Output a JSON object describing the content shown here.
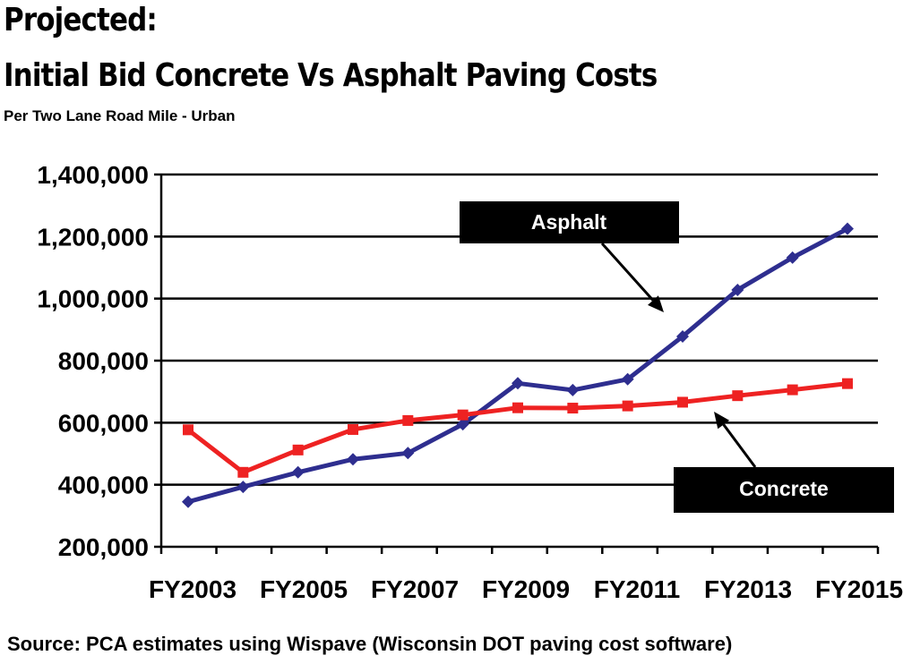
{
  "header": {
    "title_line1": "Projected:",
    "title_line2": "Initial Bid Concrete Vs Asphalt Paving Costs",
    "subtitle": "Per Two Lane Road Mile - Urban"
  },
  "footer": {
    "source": "Source: PCA estimates using Wispave (Wisconsin DOT paving cost software)"
  },
  "colors": {
    "asphalt": "#2e2e8f",
    "concrete": "#ee2222",
    "callout_bg": "#000000",
    "callout_text": "#ffffff",
    "grid": "#000000"
  },
  "chart_data": {
    "type": "line",
    "title": "Initial Bid Concrete Vs Asphalt Paving Costs",
    "subtitle": "Per Two Lane Road Mile - Urban",
    "xlabel": "",
    "ylabel": "",
    "x_tick_labels": [
      "FY2003",
      "FY2005",
      "FY2007",
      "FY2009",
      "FY2011",
      "FY2013",
      "FY2015"
    ],
    "ylim": [
      200000,
      1400000
    ],
    "y_ticks": [
      200000,
      400000,
      600000,
      800000,
      1000000,
      1200000,
      1400000
    ],
    "y_tick_labels": [
      "200,000",
      "400,000",
      "600,000",
      "800,000",
      "1,000,000",
      "1,200,000",
      "1,400,000"
    ],
    "grid": "horizontal",
    "series": [
      {
        "name": "Asphalt",
        "color": "#2e2e8f",
        "marker": "diamond",
        "values": [
          345000,
          393000,
          440000,
          482000,
          502000,
          595000,
          727000,
          705000,
          740000,
          878000,
          1028000,
          1132000,
          1225000
        ]
      },
      {
        "name": "Concrete",
        "color": "#ee2222",
        "marker": "square",
        "values": [
          577000,
          440000,
          512000,
          578000,
          607000,
          625000,
          648000,
          647000,
          654000,
          666000,
          687000,
          706000,
          726000
        ]
      }
    ],
    "annotations": [
      {
        "text": "Asphalt",
        "series": "Asphalt"
      },
      {
        "text": "Concrete",
        "series": "Concrete"
      }
    ]
  }
}
